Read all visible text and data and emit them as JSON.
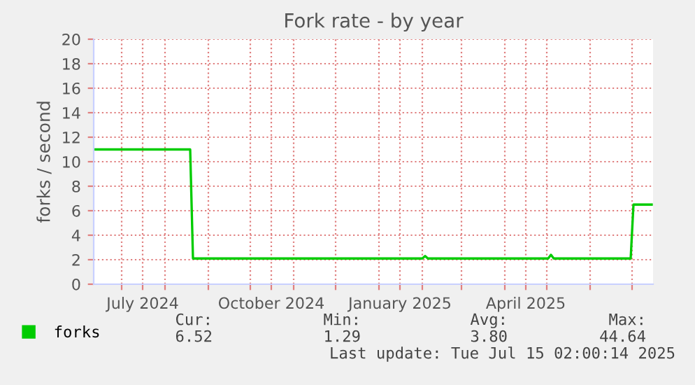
{
  "chart_data": {
    "type": "line",
    "title": "Fork rate - by year",
    "ylabel": "forks / second",
    "x": [
      "2024-06-11",
      "2024-08-19",
      "2024-08-21",
      "2025-02-01",
      "2025-02-03",
      "2025-02-05",
      "2025-05-02",
      "2025-05-04",
      "2025-05-06",
      "2025-06-30",
      "2025-07-02",
      "2025-07-15"
    ],
    "series": [
      {
        "name": "forks",
        "color": "#00cc00",
        "values": [
          11,
          11,
          2.1,
          2.1,
          2.3,
          2.1,
          2.1,
          2.4,
          2.1,
          2.1,
          6.5,
          6.5
        ]
      }
    ],
    "xlim": [
      "2024-06-11",
      "2025-07-16"
    ],
    "xticks": [
      {
        "value": "2024-07-01",
        "label": null
      },
      {
        "value": "2024-07-16",
        "label": "July 2024"
      },
      {
        "value": "2024-08-01",
        "label": null
      },
      {
        "value": "2024-09-01",
        "label": null
      },
      {
        "value": "2024-10-01",
        "label": null
      },
      {
        "value": "2024-10-16",
        "label": "October 2024"
      },
      {
        "value": "2024-11-01",
        "label": null
      },
      {
        "value": "2024-12-01",
        "label": null
      },
      {
        "value": "2025-01-01",
        "label": null
      },
      {
        "value": "2025-01-16",
        "label": "January 2025"
      },
      {
        "value": "2025-02-01",
        "label": null
      },
      {
        "value": "2025-03-01",
        "label": null
      },
      {
        "value": "2025-04-01",
        "label": null
      },
      {
        "value": "2025-04-16",
        "label": "April 2025"
      },
      {
        "value": "2025-05-01",
        "label": null
      },
      {
        "value": "2025-06-01",
        "label": null
      },
      {
        "value": "2025-07-01",
        "label": null
      }
    ],
    "ylim": [
      0,
      20
    ],
    "yticks": [
      0,
      2,
      4,
      6,
      8,
      10,
      12,
      14,
      16,
      18,
      20
    ],
    "grid": true,
    "legend": "bottom left",
    "marker": "none",
    "line_style": "solid",
    "annotations": [
      "Cur:",
      "6.52",
      "Min:",
      "1.29",
      "Avg:",
      "3.80",
      "Max:",
      "44.64",
      "Last update: Tue Jul 15 02:00:14 2025"
    ]
  }
}
